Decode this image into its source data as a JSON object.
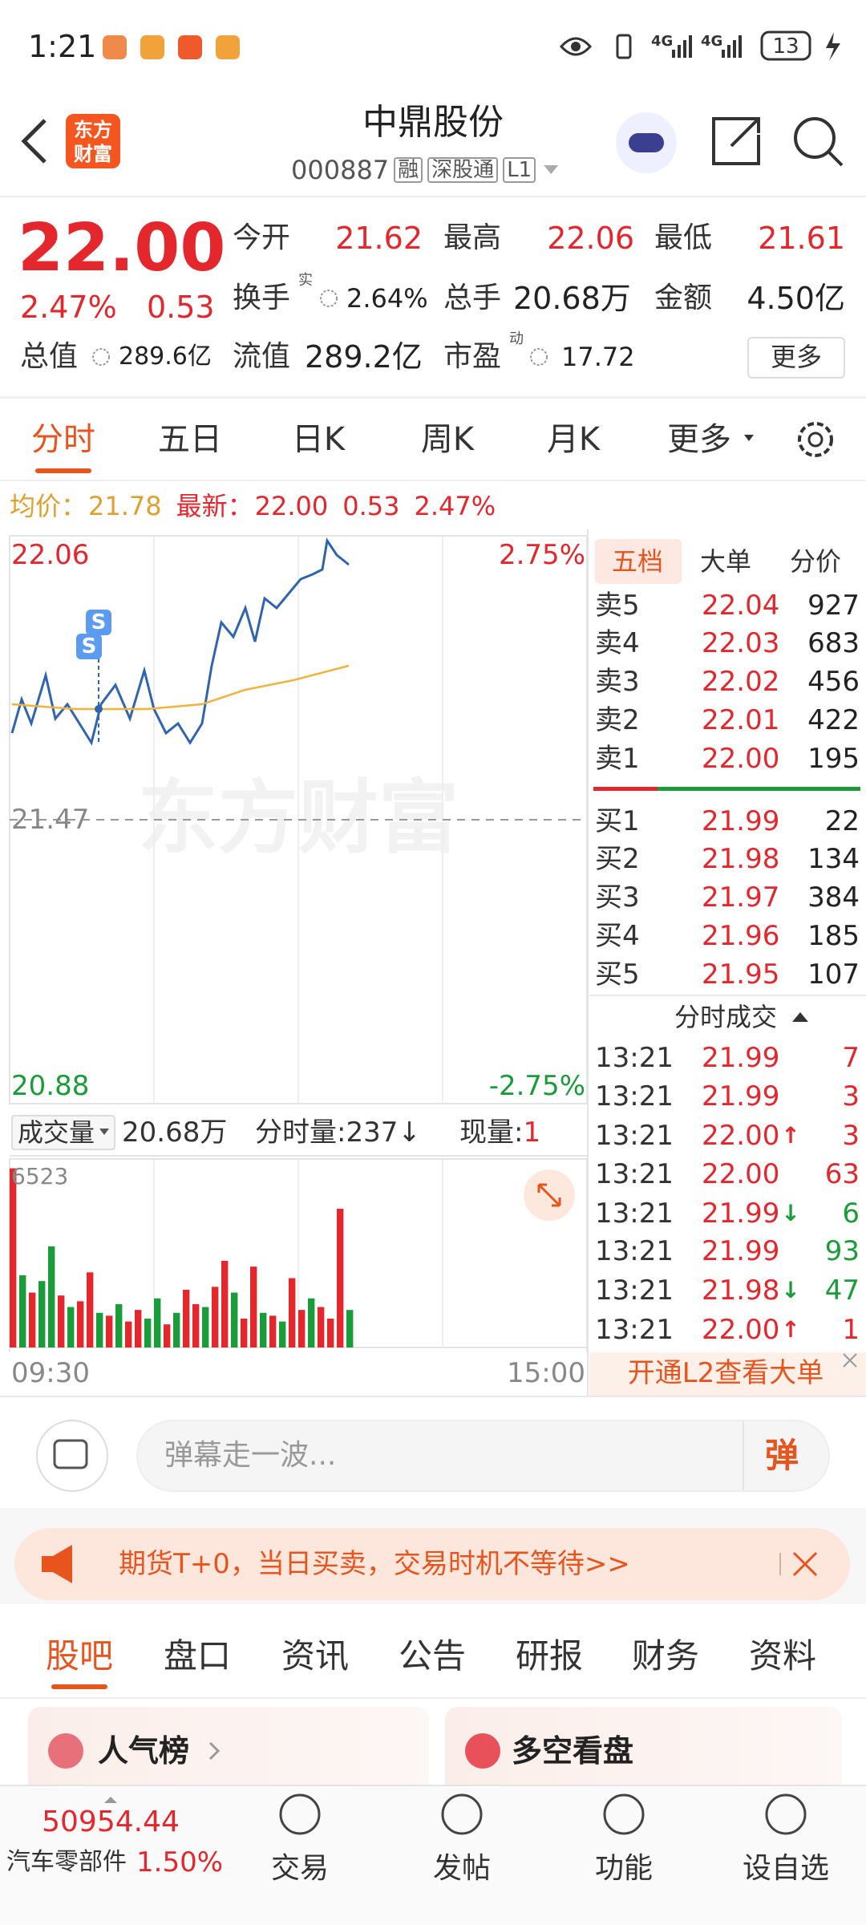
{
  "status_bar": {
    "time": "1:21",
    "network": [
      "4G",
      "4G"
    ],
    "battery": "13"
  },
  "header": {
    "logo": [
      "东方",
      "财富"
    ],
    "title": "中鼎股份",
    "code": "000887",
    "tags": [
      "融",
      "深股通",
      "L1"
    ]
  },
  "quote": {
    "price": "22.00",
    "change_pct": "2.47%",
    "change": "0.53",
    "stats": [
      [
        {
          "label": "今开",
          "value": "21.62"
        },
        {
          "label": "最高",
          "value": "22.06"
        },
        {
          "label": "最低",
          "value": "21.61"
        }
      ],
      [
        {
          "label": "换手",
          "sup": "实",
          "value": "2.64%"
        },
        {
          "label": "总手",
          "value": "20.68万"
        },
        {
          "label": "金额",
          "value": "4.50亿"
        }
      ],
      [
        {
          "label": "总值",
          "value": "289.6亿"
        },
        {
          "label": "流值",
          "value": "289.2亿"
        },
        {
          "label": "市盈",
          "sup": "动",
          "value": "17.72"
        }
      ]
    ],
    "more": "更多"
  },
  "chart_tabs": [
    "分时",
    "五日",
    "日K",
    "周K",
    "月K",
    "更多"
  ],
  "info_line": {
    "avg_label": "均价：",
    "avg": "21.78",
    "latest_label": "最新：",
    "latest": "22.00",
    "change": "0.53",
    "pct": "2.47%"
  },
  "chart_data": [
    {
      "type": "line",
      "watermark": "东方财富",
      "xlim": [
        0,
        240
      ],
      "ylim": [
        20.88,
        22.06
      ],
      "yticks": [
        20.88,
        21.47,
        22.06
      ],
      "y2lim": [
        -2.75,
        2.75
      ],
      "y2ticks": [
        {
          "value": 2.75,
          "label": "2.75%"
        },
        {
          "value": -2.75,
          "label": "-2.75%"
        }
      ],
      "series": [
        {
          "color": "#2f64b0",
          "x": [
            1,
            5,
            9,
            15,
            19,
            24,
            29,
            34,
            38,
            44,
            50,
            56,
            60,
            65,
            70,
            75,
            80,
            84,
            88,
            93,
            98,
            102,
            106,
            111,
            116,
            121,
            126,
            130,
            132,
            136,
            141
          ],
          "values": [
            21.65,
            21.72,
            21.67,
            21.77,
            21.68,
            21.71,
            21.67,
            21.63,
            21.71,
            21.75,
            21.68,
            21.78,
            21.7,
            21.65,
            21.67,
            21.63,
            21.67,
            21.79,
            21.88,
            21.85,
            21.91,
            21.84,
            21.93,
            21.91,
            21.94,
            21.97,
            21.98,
            21.99,
            22.05,
            22.02,
            22.0
          ]
        },
        {
          "color": "#f0b43c",
          "x": [
            1,
            27,
            57,
            80,
            98,
            118,
            141
          ],
          "values": [
            21.71,
            21.7,
            21.7,
            21.71,
            21.74,
            21.76,
            21.79
          ]
        }
      ],
      "markers": [
        {
          "x": 37,
          "y": 21.88,
          "label": "S"
        },
        {
          "x": 33,
          "y": 21.83,
          "label": "S"
        }
      ]
    },
    {
      "type": "bar",
      "header": {
        "label": "成交量",
        "total": "20.68万",
        "interval": "分时量:237↓",
        "current_label": "现量:",
        "current": "1"
      },
      "xlim": [
        0,
        240
      ],
      "xticks": [
        {
          "value": 0,
          "label": "09:30"
        },
        {
          "value": 240,
          "label": "15:00"
        }
      ],
      "ylim": [
        0,
        6523
      ],
      "yticks": [
        6523
      ],
      "x": [
        0,
        4,
        8,
        12,
        16,
        20,
        24,
        28,
        32,
        36,
        40,
        44,
        48,
        52,
        56,
        60,
        64,
        68,
        72,
        76,
        80,
        84,
        88,
        92,
        96,
        100,
        104,
        108,
        112,
        116,
        120,
        124,
        128,
        132,
        136,
        140
      ],
      "values": [
        6200,
        2500,
        1900,
        2300,
        3500,
        1800,
        1400,
        1600,
        2600,
        1200,
        1100,
        1500,
        900,
        1300,
        1000,
        1700,
        800,
        1200,
        2000,
        1500,
        1400,
        2100,
        3000,
        1900,
        1000,
        2800,
        1200,
        1100,
        900,
        2400,
        1300,
        1700,
        1400,
        1000,
        4800,
        1300
      ],
      "colors": [
        "#e4262d",
        "#1a9c3a",
        "#e4262d",
        "#1a9c3a",
        "#1a9c3a",
        "#e4262d",
        "#1a9c3a",
        "#e4262d",
        "#e4262d",
        "#1a9c3a",
        "#e4262d",
        "#1a9c3a",
        "#e4262d",
        "#e4262d",
        "#1a9c3a",
        "#1a9c3a",
        "#e4262d",
        "#1a9c3a",
        "#e4262d",
        "#e4262d",
        "#1a9c3a",
        "#e4262d",
        "#e4262d",
        "#1a9c3a",
        "#e4262d",
        "#e4262d",
        "#1a9c3a",
        "#e4262d",
        "#1a9c3a",
        "#e4262d",
        "#e4262d",
        "#1a9c3a",
        "#e4262d",
        "#e4262d",
        "#e4262d",
        "#1a9c3a"
      ]
    }
  ],
  "order_book": {
    "tabs": [
      "五档",
      "大单",
      "分价"
    ],
    "asks": [
      {
        "label": "卖5",
        "price": "22.04",
        "volume": "927"
      },
      {
        "label": "卖4",
        "price": "22.03",
        "volume": "683"
      },
      {
        "label": "卖3",
        "price": "22.02",
        "volume": "456"
      },
      {
        "label": "卖2",
        "price": "22.01",
        "volume": "422"
      },
      {
        "label": "卖1",
        "price": "22.00",
        "volume": "195"
      }
    ],
    "bids": [
      {
        "label": "买1",
        "price": "21.99",
        "volume": "22"
      },
      {
        "label": "买2",
        "price": "21.98",
        "volume": "134"
      },
      {
        "label": "买3",
        "price": "21.97",
        "volume": "384"
      },
      {
        "label": "买4",
        "price": "21.96",
        "volume": "185"
      },
      {
        "label": "买5",
        "price": "21.95",
        "volume": "107"
      }
    ]
  },
  "trades": {
    "title": "分时成交",
    "rows": [
      {
        "time": "13:21",
        "price": "21.99",
        "volume": "7",
        "color": "#e4262d"
      },
      {
        "time": "13:21",
        "price": "21.99",
        "volume": "3",
        "color": "#e4262d"
      },
      {
        "time": "13:21",
        "price": "22.00",
        "arrow": "↑",
        "volume": "3",
        "color": "#e4262d"
      },
      {
        "time": "13:21",
        "price": "22.00",
        "volume": "63",
        "color": "#e4262d"
      },
      {
        "time": "13:21",
        "price": "21.99",
        "arrow": "↓",
        "volume": "6",
        "color": "#1a9c3a"
      },
      {
        "time": "13:21",
        "price": "21.99",
        "volume": "93",
        "color": "#1a9c3a"
      },
      {
        "time": "13:21",
        "price": "21.98",
        "arrow": "↓",
        "volume": "47",
        "color": "#1a9c3a"
      },
      {
        "time": "13:21",
        "price": "22.00",
        "arrow": "↑",
        "volume": "1",
        "color": "#e4262d"
      }
    ],
    "l2_banner": "开通L2查看大单"
  },
  "comment_bar": {
    "placeholder": "弹幕走一波...",
    "button": "弹"
  },
  "ad_banner": "期货T+0，当日买卖，交易时机不等待>>",
  "section_tabs": [
    "股吧",
    "盘口",
    "资讯",
    "公告",
    "研报",
    "财务",
    "资料"
  ],
  "cards": [
    "人气榜",
    "多空看盘"
  ],
  "bottom_nav": {
    "index_value": "50954.44",
    "index_name": "汽车零部件",
    "index_pct": "1.50%",
    "items": [
      "交易",
      "发帖",
      "功能",
      "设自选"
    ]
  }
}
